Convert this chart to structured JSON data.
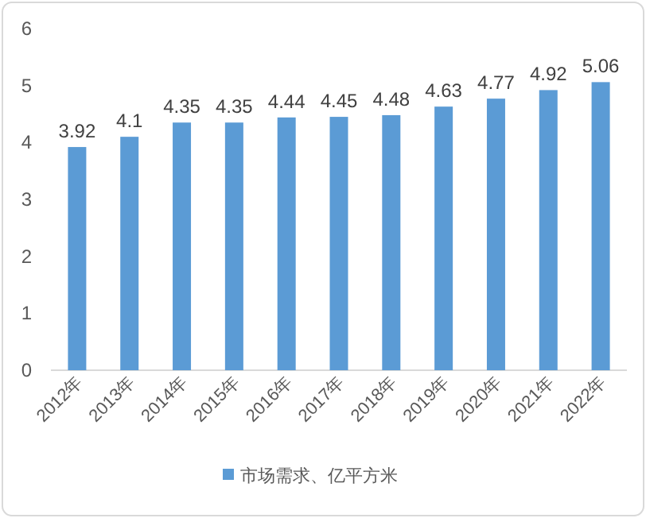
{
  "chart_data": {
    "type": "bar",
    "categories": [
      "2012年",
      "2013年",
      "2014年",
      "2015年",
      "2016年",
      "2017年",
      "2018年",
      "2019年",
      "2020年",
      "2021年",
      "2022年"
    ],
    "series": [
      {
        "name": "市场需求、亿平方米",
        "color": "#5b9bd5",
        "values": [
          3.92,
          4.1,
          4.35,
          4.35,
          4.44,
          4.45,
          4.48,
          4.63,
          4.77,
          4.92,
          5.06
        ]
      }
    ],
    "ylim": [
      0,
      6
    ],
    "yticks": [
      0,
      1,
      2,
      3,
      4,
      5,
      6
    ],
    "data_labels": true,
    "legend": "bottom"
  }
}
